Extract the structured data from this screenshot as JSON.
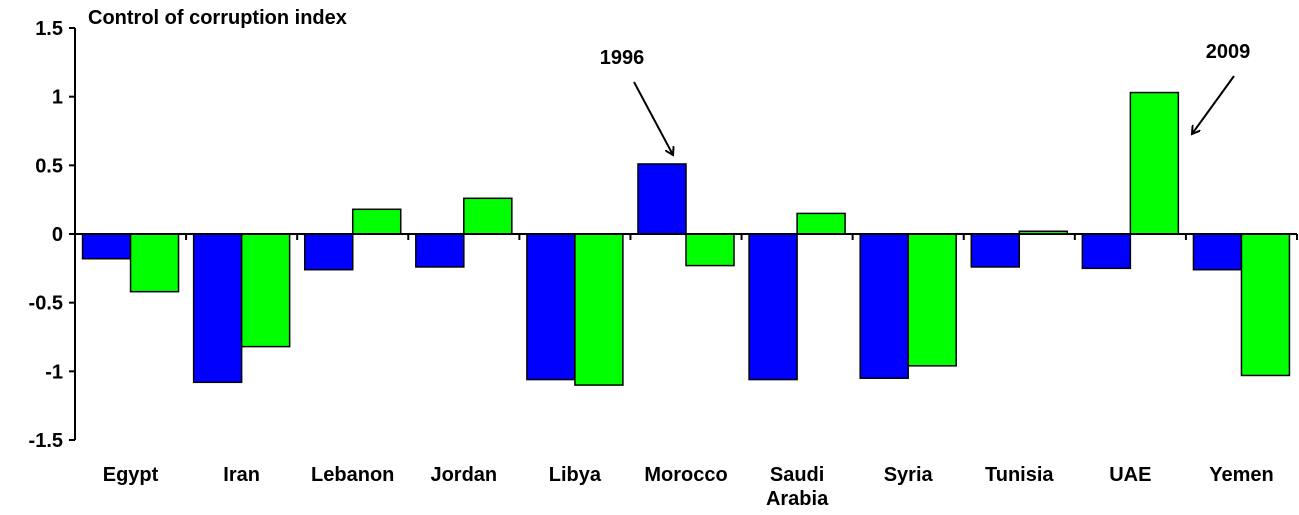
{
  "chart_data": {
    "type": "bar",
    "title": "Control of corruption index",
    "categories": [
      "Egypt",
      "Iran",
      "Lebanon",
      "Jordan",
      "Libya",
      "Morocco",
      "Saudi Arabia",
      "Syria",
      "Tunisia",
      "UAE",
      "Yemen"
    ],
    "category_label_lines": [
      [
        "Egypt"
      ],
      [
        "Iran"
      ],
      [
        "Lebanon"
      ],
      [
        "Jordan"
      ],
      [
        "Libya"
      ],
      [
        "Morocco"
      ],
      [
        "Saudi",
        "Arabia"
      ],
      [
        "Syria"
      ],
      [
        "Tunisia"
      ],
      [
        "UAE"
      ],
      [
        "Yemen"
      ]
    ],
    "series": [
      {
        "name": "1996",
        "color": "#0000FF",
        "values": [
          -0.18,
          -1.08,
          -0.26,
          -0.24,
          -1.06,
          0.51,
          -1.06,
          -1.05,
          -0.24,
          -0.25,
          -0.26
        ]
      },
      {
        "name": "2009",
        "color": "#00FF00",
        "values": [
          -0.42,
          -0.82,
          0.18,
          0.26,
          -1.1,
          -0.23,
          0.15,
          -0.96,
          0.02,
          1.03,
          -1.03
        ]
      }
    ],
    "ylim": [
      -1.5,
      1.5
    ],
    "yticks": [
      1.5,
      1,
      0.5,
      0,
      -0.5,
      -1,
      -1.5
    ],
    "ytick_labels": [
      "1.5",
      "1",
      "0.5",
      "0",
      "-0.5",
      "-1",
      "-1.5"
    ],
    "xlabel": "",
    "ylabel": "",
    "grid": false,
    "legend": "annotations with arrows"
  }
}
